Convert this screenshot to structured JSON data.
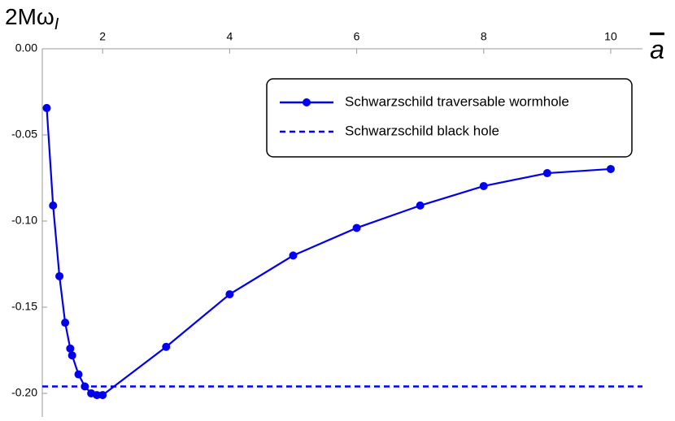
{
  "chart_data": {
    "type": "line",
    "x_label": "a",
    "y_label": {
      "text": "2Mω",
      "sub": "I"
    },
    "xlim": [
      1.05,
      10.5
    ],
    "ylim": [
      -0.2137,
      0
    ],
    "xticks": [
      2,
      4,
      6,
      8,
      10
    ],
    "yticks": [
      {
        "value": 0,
        "label": "0.00"
      },
      -0.05,
      {
        "value": -0.1,
        "label": "-0.10"
      },
      -0.15,
      {
        "value": -0.2,
        "label": "-0.20"
      }
    ],
    "legend": "upper right",
    "series": [
      {
        "name": "Schwarzschild traversable wormhole",
        "color": "#0000ee",
        "markers": true,
        "x": [
          1.12,
          1.22,
          1.32,
          1.41,
          1.49,
          1.52,
          1.62,
          1.72,
          1.82,
          1.91,
          2,
          3,
          4,
          5,
          6,
          7,
          8,
          9,
          10
        ],
        "values": [
          -0.0344,
          -0.091,
          -0.132,
          -0.159,
          -0.174,
          -0.178,
          -0.189,
          -0.196,
          -0.2,
          -0.201,
          -0.201,
          -0.173,
          -0.1425,
          -0.12,
          -0.104,
          -0.091,
          -0.0797,
          -0.0722,
          -0.0698
        ]
      },
      {
        "name": "Schwarzschild black hole",
        "color": "#0000ee",
        "dashed": true,
        "y": -0.196
      }
    ]
  }
}
